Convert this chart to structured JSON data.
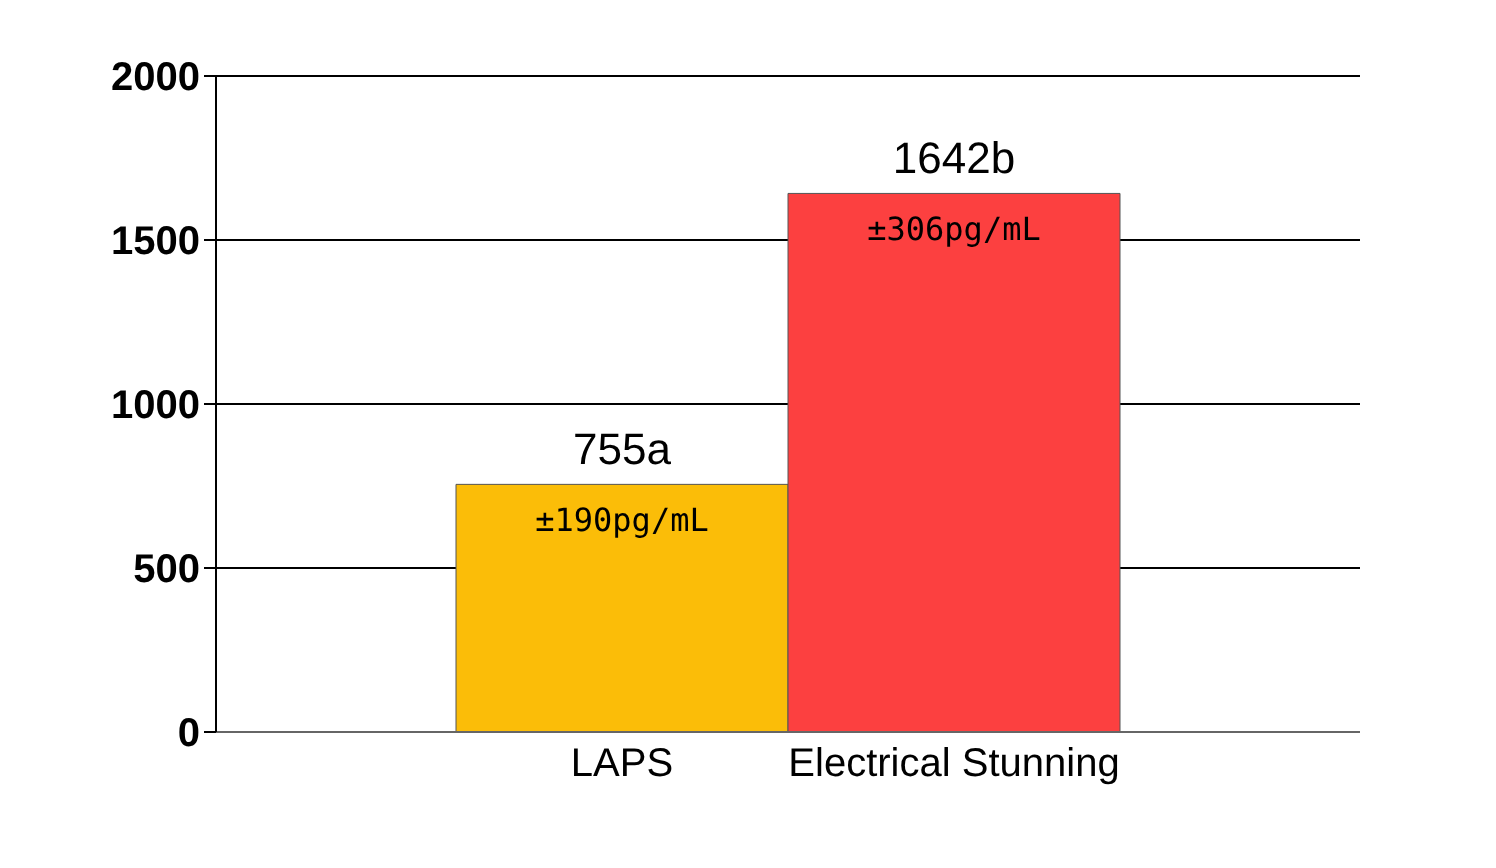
{
  "chart_data": {
    "type": "bar",
    "categories": [
      "LAPS",
      "Electrical Stunning"
    ],
    "values": [
      755,
      1642
    ],
    "colors": [
      "#fbbd08",
      "#fc4040"
    ],
    "value_labels": [
      "755a",
      "1642b"
    ],
    "annotations": [
      {
        "text": "±190pg/mL",
        "x": "LAPS",
        "y": 755
      },
      {
        "text": "±306pg/mL",
        "x": "Electrical Stunning",
        "y": 1642
      }
    ],
    "ylim": [
      0,
      2000
    ],
    "yticks": [
      0,
      500,
      1000,
      1500,
      2000
    ],
    "grid": "y"
  }
}
